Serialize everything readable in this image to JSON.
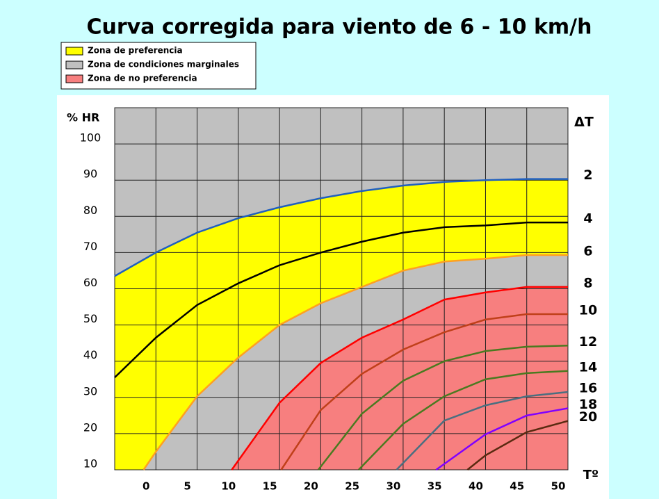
{
  "chart_data": {
    "type": "line",
    "title": "Curva corregida para viento de 6 - 10 km/h",
    "y_label": "% HR",
    "x_label": "Tº",
    "series_label": "ΔT",
    "legend": [
      {
        "label": "Zona de preferencia",
        "color": "#ffff00"
      },
      {
        "label": "Zona de condiciones marginales",
        "color": "#c0c0c0"
      },
      {
        "label": "Zona de  no preferencia",
        "color": "#f77f7f"
      }
    ],
    "xlim": [
      -5,
      50
    ],
    "ylim": [
      10,
      110
    ],
    "xticks": [
      0,
      5,
      10,
      15,
      20,
      25,
      30,
      35,
      40,
      45,
      50
    ],
    "yticks": [
      10,
      20,
      30,
      40,
      50,
      60,
      70,
      80,
      90,
      100
    ],
    "grid": true,
    "series": [
      {
        "name": "2",
        "color": "#1f5fbf",
        "x": [
          -5,
          0,
          5,
          10,
          15,
          20,
          25,
          30,
          35,
          40,
          45,
          50
        ],
        "values": [
          63.5,
          70,
          75.5,
          79.5,
          82.5,
          85,
          87,
          88.5,
          89.5,
          90,
          90.3,
          90.3
        ]
      },
      {
        "name": "4",
        "color": "#000000",
        "x": [
          -5,
          0,
          5,
          10,
          15,
          20,
          25,
          30,
          35,
          40,
          45,
          50
        ],
        "values": [
          35.5,
          46.5,
          55.5,
          61.5,
          66.5,
          70,
          73,
          75.5,
          77,
          77.5,
          78.3,
          78.3
        ]
      },
      {
        "name": "6",
        "color": "#ffa020",
        "x": [
          -1.5,
          0,
          5,
          10,
          15,
          20,
          25,
          30,
          35,
          40,
          45,
          50
        ],
        "values": [
          10,
          15,
          30.3,
          41,
          50,
          56,
          60.5,
          65,
          67.5,
          68.3,
          69.3,
          69.3
        ]
      },
      {
        "name": "8",
        "color": "#ff0000",
        "x": [
          9.2,
          15,
          20,
          25,
          30,
          35,
          40,
          45,
          50
        ],
        "values": [
          10,
          28.5,
          39.5,
          46.5,
          51.5,
          57,
          59,
          60.5,
          60.5
        ]
      },
      {
        "name": "10",
        "color": "#c0401a",
        "x": [
          15.2,
          20,
          25,
          30,
          35,
          40,
          45,
          50
        ],
        "values": [
          10,
          26.5,
          36.5,
          43.2,
          48,
          51.5,
          53,
          53
        ]
      },
      {
        "name": "12",
        "color": "#4a7a20",
        "x": [
          19.7,
          25,
          30,
          35,
          40,
          45,
          50
        ],
        "values": [
          10,
          25.5,
          34.6,
          40,
          42.8,
          44,
          44.3
        ]
      },
      {
        "name": "14",
        "color": "#4a7a20",
        "x": [
          24.6,
          30,
          35,
          40,
          45,
          50
        ],
        "values": [
          10,
          22.7,
          30.3,
          35,
          36.7,
          37.3
        ]
      },
      {
        "name": "16",
        "color": "#4a6f80",
        "x": [
          29.2,
          35,
          40,
          45,
          50
        ],
        "values": [
          10,
          23.6,
          27.8,
          30.3,
          31.5
        ]
      },
      {
        "name": "18",
        "color": "#8000ff",
        "x": [
          34,
          40,
          45,
          50
        ],
        "values": [
          10,
          19.8,
          25,
          27
        ]
      },
      {
        "name": "20",
        "color": "#5a2a10",
        "x": [
          37.8,
          40,
          45,
          50
        ],
        "values": [
          10,
          14,
          20.4,
          23.5
        ]
      }
    ]
  }
}
